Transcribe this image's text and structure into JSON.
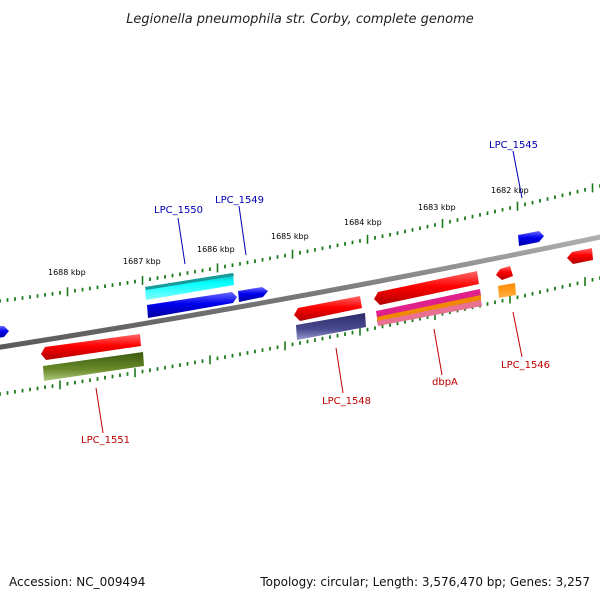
{
  "header": {
    "title": "Legionella pneumophila str. Corby, complete genome"
  },
  "footer": {
    "accession": "Accession: NC_009494",
    "summary": "Topology: circular; Length: 3,576,470 bp; Genes: 3,257"
  },
  "colors": {
    "backbone": "#7a7a7a",
    "tick_green": "#1a7a1a",
    "label_blue": "#0000b0",
    "label_red": "#c00000"
  },
  "scale_labels": [
    "1688 kbp",
    "1687 kbp",
    "1686 kbp",
    "1685 kbp",
    "1684 kbp",
    "1683 kbp",
    "1682 kbp"
  ],
  "gene_labels": [
    {
      "name": "LPC_1550",
      "color": "blue"
    },
    {
      "name": "LPC_1549",
      "color": "blue"
    },
    {
      "name": "LPC_1545",
      "color": "blue"
    },
    {
      "name": "LPC_1551",
      "color": "red"
    },
    {
      "name": "LPC_1548",
      "color": "red"
    },
    {
      "name": "dbpA",
      "color": "red"
    },
    {
      "name": "LPC_1546",
      "color": "red"
    }
  ],
  "feature_colors": [
    "#0000ee",
    "#ff0000",
    "#00eeee",
    "#3a3a8a",
    "#5a7a1a",
    "#ff6600",
    "#e0208a",
    "#f0a000"
  ]
}
